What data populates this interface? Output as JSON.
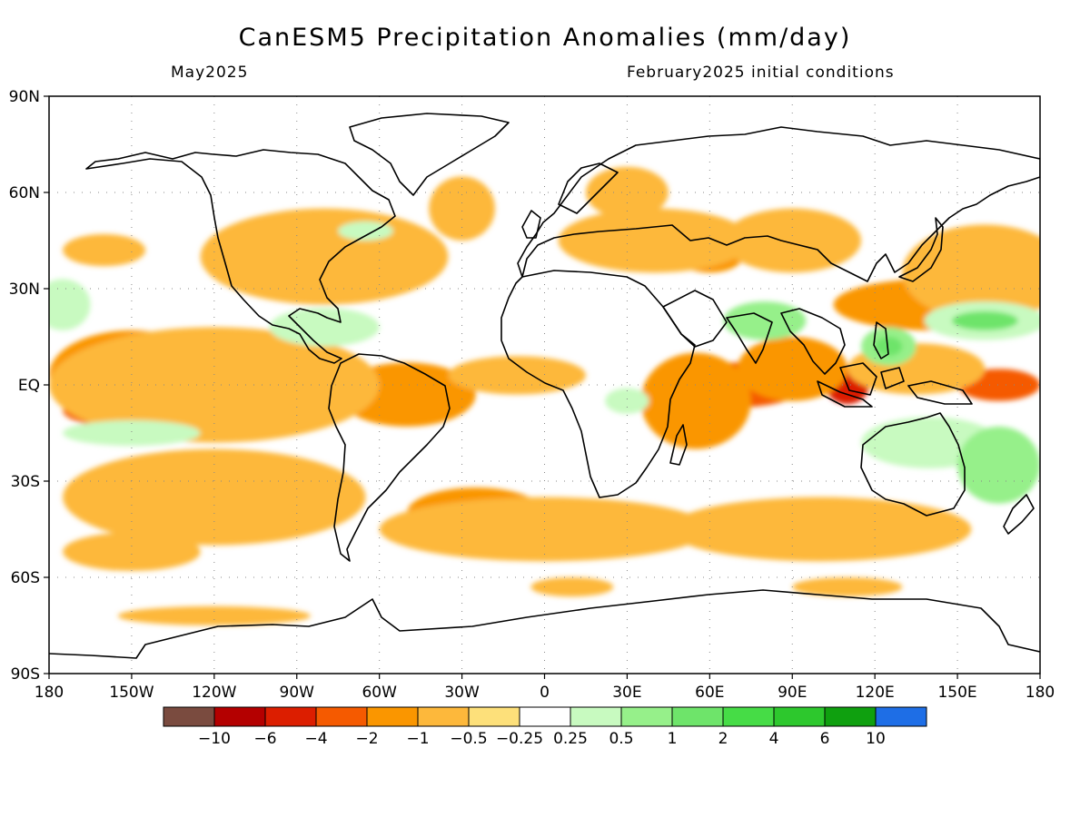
{
  "title": "CanESM5 Precipitation Anomalies (mm/day)",
  "subtitle_left": "May2025",
  "subtitle_right": "February2025 initial conditions",
  "chart_data": {
    "type": "heatmap",
    "projection": "equirectangular",
    "x_range": [
      -180,
      180
    ],
    "y_range": [
      -90,
      90
    ],
    "grid": "dotted",
    "x_ticks": [
      {
        "value": -180,
        "label": "180"
      },
      {
        "value": -150,
        "label": "150W"
      },
      {
        "value": -120,
        "label": "120W"
      },
      {
        "value": -90,
        "label": "90W"
      },
      {
        "value": -60,
        "label": "60W"
      },
      {
        "value": -30,
        "label": "30W"
      },
      {
        "value": 0,
        "label": "0"
      },
      {
        "value": 30,
        "label": "30E"
      },
      {
        "value": 60,
        "label": "60E"
      },
      {
        "value": 90,
        "label": "90E"
      },
      {
        "value": 120,
        "label": "120E"
      },
      {
        "value": 150,
        "label": "150E"
      },
      {
        "value": 180,
        "label": "180"
      }
    ],
    "y_ticks": [
      {
        "value": 90,
        "label": "90N"
      },
      {
        "value": 60,
        "label": "60N"
      },
      {
        "value": 30,
        "label": "30N"
      },
      {
        "value": 0,
        "label": "EQ"
      },
      {
        "value": -30,
        "label": "30S"
      },
      {
        "value": -60,
        "label": "60S"
      },
      {
        "value": -90,
        "label": "90S"
      }
    ],
    "colorbar": {
      "colors": [
        "#7a4b3f",
        "#b40000",
        "#dc1e00",
        "#f55a00",
        "#fa9600",
        "#fdb83b",
        "#fde07a",
        "#ffffff",
        "#c8fac0",
        "#96f08a",
        "#6ee46a",
        "#46dc46",
        "#2dc82d",
        "#0fa00f",
        "#1e6ee6"
      ],
      "labels": [
        "−10",
        "−6",
        "−4",
        "−2",
        "−1",
        "−0.5",
        "−0.25",
        "0.25",
        "0.5",
        "1",
        "2",
        "4",
        "6",
        "10"
      ]
    },
    "anomaly_regions": [
      {
        "lon": -140,
        "lat": 3,
        "rx": 40,
        "ry": 7,
        "level": -2
      },
      {
        "lon": -145,
        "lat": -8,
        "rx": 30,
        "ry": 6,
        "level": -2
      },
      {
        "lon": -125,
        "lat": 10,
        "rx": 25,
        "ry": 4,
        "level": -2
      },
      {
        "lon": -85,
        "lat": 7,
        "rx": 10,
        "ry": 4,
        "level": -2
      },
      {
        "lon": 70,
        "lat": 0,
        "rx": 25,
        "ry": 7,
        "level": -2
      },
      {
        "lon": 110,
        "lat": 0,
        "rx": 8,
        "ry": 6,
        "level": -4
      },
      {
        "lon": 165,
        "lat": 0,
        "rx": 15,
        "ry": 5,
        "level": -2
      },
      {
        "lon": -150,
        "lat": 3,
        "rx": 30,
        "ry": 14,
        "level": -1
      },
      {
        "lon": -50,
        "lat": -3,
        "rx": 25,
        "ry": 10,
        "level": -1
      },
      {
        "lon": 55,
        "lat": -5,
        "rx": 20,
        "ry": 15,
        "level": -1
      },
      {
        "lon": 90,
        "lat": 5,
        "rx": 20,
        "ry": 10,
        "level": -1
      },
      {
        "lon": 140,
        "lat": 25,
        "rx": 35,
        "ry": 8,
        "level": -1
      },
      {
        "lon": -95,
        "lat": 40,
        "rx": 25,
        "ry": 8,
        "level": -1
      },
      {
        "lon": -25,
        "lat": -40,
        "rx": 25,
        "ry": 8,
        "level": -1
      },
      {
        "lon": -120,
        "lat": -35,
        "rx": 20,
        "ry": 8,
        "level": -1
      },
      {
        "lon": 85,
        "lat": -45,
        "rx": 20,
        "ry": 8,
        "level": -1
      },
      {
        "lon": 60,
        "lat": 40,
        "rx": 12,
        "ry": 5,
        "level": -1
      },
      {
        "lon": 135,
        "lat": 5,
        "rx": 25,
        "ry": 8,
        "level": -0.5
      },
      {
        "lon": -120,
        "lat": 0,
        "rx": 60,
        "ry": 18,
        "level": -0.5
      },
      {
        "lon": -10,
        "lat": 3,
        "rx": 25,
        "ry": 6,
        "level": -0.5
      },
      {
        "lon": -120,
        "lat": -35,
        "rx": 55,
        "ry": 15,
        "level": -0.5
      },
      {
        "lon": 0,
        "lat": -45,
        "rx": 60,
        "ry": 10,
        "level": -0.5
      },
      {
        "lon": 100,
        "lat": -45,
        "rx": 55,
        "ry": 10,
        "level": -0.5
      },
      {
        "lon": -80,
        "lat": 40,
        "rx": 45,
        "ry": 15,
        "level": -0.5
      },
      {
        "lon": 40,
        "lat": 45,
        "rx": 35,
        "ry": 10,
        "level": -0.5
      },
      {
        "lon": 90,
        "lat": 45,
        "rx": 25,
        "ry": 10,
        "level": -0.5
      },
      {
        "lon": 160,
        "lat": 35,
        "rx": 30,
        "ry": 15,
        "level": -0.5
      },
      {
        "lon": -120,
        "lat": -72,
        "rx": 35,
        "ry": 3,
        "level": -0.5
      },
      {
        "lon": 110,
        "lat": -63,
        "rx": 20,
        "ry": 3,
        "level": -0.5
      },
      {
        "lon": 10,
        "lat": -63,
        "rx": 15,
        "ry": 3,
        "level": -0.5
      },
      {
        "lon": -160,
        "lat": 42,
        "rx": 15,
        "ry": 5,
        "level": -0.5
      },
      {
        "lon": -30,
        "lat": 55,
        "rx": 12,
        "ry": 10,
        "level": -0.5
      },
      {
        "lon": 30,
        "lat": 60,
        "rx": 15,
        "ry": 8,
        "level": -0.5
      },
      {
        "lon": -150,
        "lat": -52,
        "rx": 25,
        "ry": 6,
        "level": -0.5
      },
      {
        "lon": -175,
        "lat": 25,
        "rx": 10,
        "ry": 8,
        "level": 0.5
      },
      {
        "lon": -80,
        "lat": 18,
        "rx": 20,
        "ry": 6,
        "level": 0.5
      },
      {
        "lon": 160,
        "lat": 20,
        "rx": 22,
        "ry": 6,
        "level": 0.5
      },
      {
        "lon": 160,
        "lat": 20,
        "rx": 12,
        "ry": 3,
        "level": 2
      },
      {
        "lon": 125,
        "lat": 12,
        "rx": 10,
        "ry": 6,
        "level": 1
      },
      {
        "lon": 125,
        "lat": 12,
        "rx": 5,
        "ry": 3,
        "level": 2
      },
      {
        "lon": 80,
        "lat": 20,
        "rx": 15,
        "ry": 6,
        "level": 1
      },
      {
        "lon": 140,
        "lat": -18,
        "rx": 25,
        "ry": 8,
        "level": 0.5
      },
      {
        "lon": 165,
        "lat": -25,
        "rx": 15,
        "ry": 12,
        "level": 1
      },
      {
        "lon": -65,
        "lat": 48,
        "rx": 10,
        "ry": 3,
        "level": 0.5
      },
      {
        "lon": 30,
        "lat": -5,
        "rx": 8,
        "ry": 4,
        "level": 0.5
      },
      {
        "lon": -150,
        "lat": -15,
        "rx": 25,
        "ry": 4,
        "level": 0.5
      }
    ]
  }
}
